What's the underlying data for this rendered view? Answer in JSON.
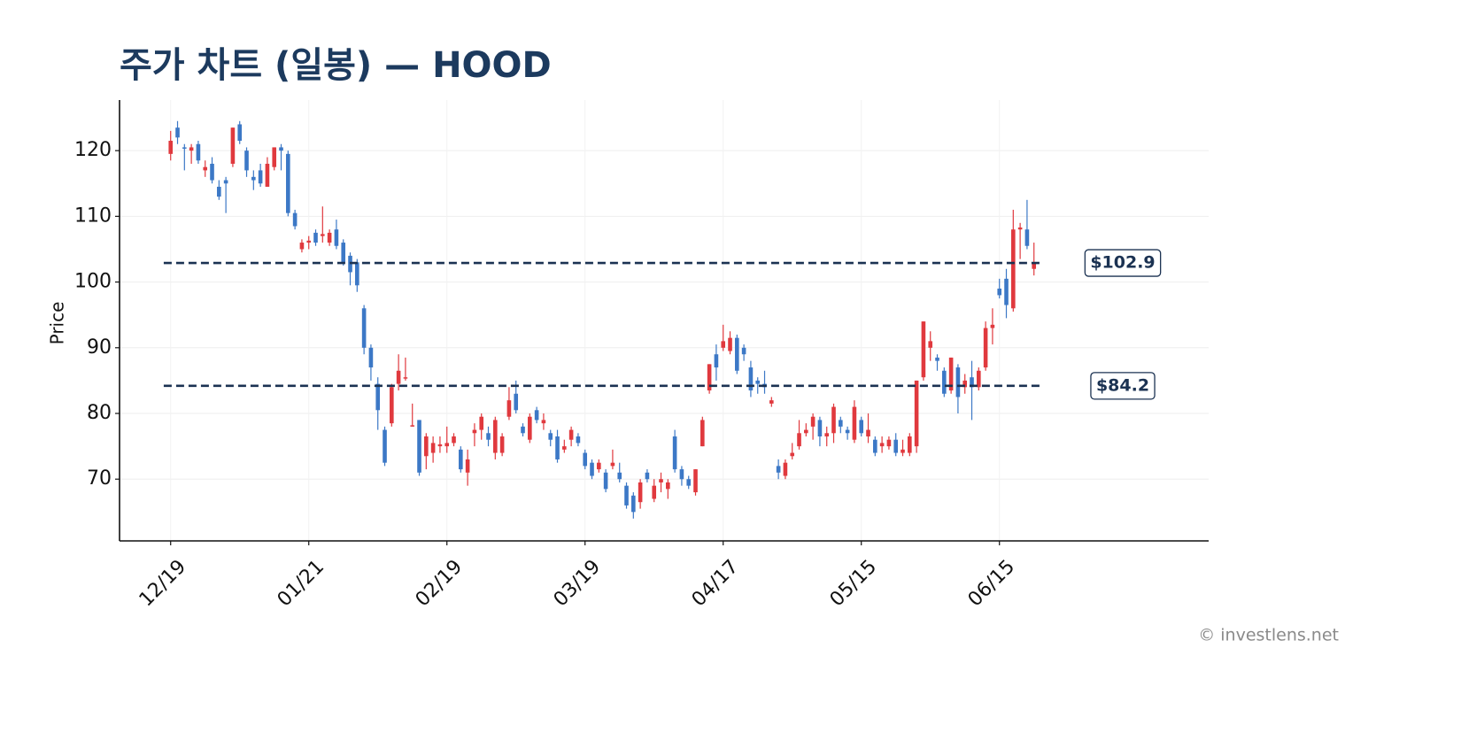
{
  "chart_data": {
    "type": "candlestick",
    "title": "주가 차트 (일봉) — HOOD",
    "y_label": "Price",
    "watermark": "© investlens.net",
    "up_color": "#e0393e",
    "down_color": "#3c78c6",
    "grid": true,
    "ylim": [
      60.6,
      127.7
    ],
    "yticks": [
      70,
      80,
      90,
      100,
      110,
      120
    ],
    "categories": [
      "12/19",
      null,
      null,
      null,
      null,
      null,
      null,
      null,
      null,
      null,
      null,
      null,
      null,
      null,
      null,
      null,
      null,
      null,
      null,
      null,
      "01/21",
      null,
      null,
      null,
      null,
      null,
      null,
      null,
      null,
      null,
      null,
      null,
      null,
      null,
      null,
      null,
      null,
      null,
      null,
      null,
      "02/19",
      null,
      null,
      null,
      null,
      null,
      null,
      null,
      null,
      null,
      null,
      null,
      null,
      null,
      null,
      null,
      null,
      null,
      null,
      null,
      "03/19",
      null,
      null,
      null,
      null,
      null,
      null,
      null,
      null,
      null,
      null,
      null,
      null,
      null,
      null,
      null,
      null,
      null,
      null,
      null,
      "04/17",
      null,
      null,
      null,
      null,
      null,
      null,
      null,
      null,
      null,
      null,
      null,
      null,
      null,
      null,
      null,
      null,
      null,
      null,
      null,
      "05/15",
      null,
      null,
      null,
      null,
      null,
      null,
      null,
      null,
      null,
      null,
      null,
      null,
      null,
      null,
      null,
      null,
      null,
      null,
      null,
      "06/15",
      null,
      null,
      null,
      null,
      null
    ],
    "open": [
      119.5,
      123.5,
      120.5,
      120,
      121,
      117,
      118,
      114.5,
      115.5,
      118,
      124,
      120,
      116,
      117,
      114.5,
      117.5,
      120.5,
      119.5,
      110.5,
      105,
      106,
      107.5,
      107,
      106,
      108,
      106,
      104,
      103,
      96,
      90,
      84.5,
      77.5,
      78.5,
      84.5,
      85.3,
      78,
      79,
      73.5,
      74,
      75,
      75,
      75.5,
      74.5,
      71,
      77,
      77.5,
      77,
      74,
      74,
      79.5,
      83,
      78,
      76,
      80.5,
      78.5,
      77,
      76.5,
      74.5,
      76,
      76.5,
      74,
      72.5,
      71.5,
      71,
      72,
      71,
      69,
      67.5,
      66.5,
      71,
      67,
      69.5,
      68.5,
      76.5,
      71.5,
      70,
      68,
      75,
      83.5,
      89,
      90,
      89.5,
      91.5,
      90,
      87,
      85,
      84.5,
      81.5,
      72,
      70.5,
      73.5,
      75,
      77,
      78,
      79,
      76.5,
      77,
      79,
      77.5,
      76,
      79,
      76.5,
      76,
      75,
      75,
      76,
      74,
      74,
      75,
      85.5,
      90,
      88.5,
      86.5,
      83.5,
      87,
      84,
      85.5,
      84,
      87,
      93,
      99,
      100.5,
      96,
      108,
      108,
      102
    ],
    "high": [
      123,
      124.5,
      121,
      121,
      121.5,
      118.5,
      119,
      115.5,
      116,
      123.5,
      124.5,
      120.5,
      117,
      118,
      119,
      120.5,
      121,
      120,
      111,
      106.5,
      107,
      108,
      111.5,
      108,
      109.5,
      106.5,
      104.5,
      103.5,
      96.5,
      90.5,
      85.5,
      78,
      84.5,
      89,
      88.5,
      81.5,
      79,
      77,
      76.5,
      76.5,
      78,
      77,
      75,
      74.5,
      78.5,
      80,
      78,
      79.5,
      77,
      84,
      85,
      78.5,
      80,
      81,
      80,
      77.5,
      77.5,
      76,
      78,
      77,
      74.5,
      73,
      73,
      71.5,
      74.5,
      72.5,
      69.5,
      68,
      70,
      71.5,
      70,
      71,
      70,
      77.5,
      72,
      70.5,
      71.5,
      79.5,
      87.5,
      90.5,
      93.5,
      92.5,
      92,
      90.5,
      88,
      85.5,
      86.5,
      82.5,
      73,
      73,
      75.5,
      79,
      78.5,
      80,
      79.5,
      78,
      81.5,
      79.5,
      78,
      82,
      79.5,
      80,
      76.5,
      76.5,
      76.5,
      77,
      76,
      77,
      85,
      94,
      92.5,
      89,
      87,
      88.5,
      87.5,
      86,
      88,
      87,
      94,
      96,
      100.5,
      102,
      111,
      109,
      112.5,
      106
    ],
    "low": [
      118.5,
      121,
      117,
      118,
      118,
      116,
      115,
      112.5,
      110.5,
      117.5,
      121,
      116,
      114,
      114.5,
      114.5,
      117,
      117,
      110,
      108,
      104.5,
      105,
      105.5,
      106,
      105.5,
      105,
      102.5,
      99.5,
      98.5,
      89,
      85,
      77.5,
      72,
      78,
      83.5,
      85,
      78,
      70.5,
      71.5,
      72.5,
      74,
      74,
      75,
      71,
      69,
      75,
      76,
      75,
      73,
      73.5,
      79,
      80,
      76.5,
      75.5,
      78.5,
      77.5,
      75,
      72.5,
      74,
      75,
      75,
      71.5,
      70,
      71,
      68,
      71.5,
      69.5,
      65.5,
      64,
      65.5,
      69.5,
      66.5,
      68,
      67,
      71,
      69,
      68.5,
      67.5,
      75,
      83,
      85,
      89.5,
      89,
      86,
      88,
      82.5,
      83,
      83,
      81,
      70,
      70,
      73,
      74.5,
      76.5,
      76,
      75,
      75,
      75.5,
      77,
      76,
      75.5,
      76.5,
      75.5,
      73.5,
      74,
      74.5,
      73.5,
      73.5,
      73.5,
      74,
      85,
      88,
      86.5,
      82.5,
      83,
      80,
      83,
      79,
      83.5,
      86.5,
      90.5,
      97.5,
      94.5,
      95.5,
      103.5,
      105,
      101
    ],
    "close": [
      121.5,
      122,
      120.3,
      120.5,
      118.5,
      117.5,
      115.5,
      113,
      115,
      123.5,
      121.5,
      117,
      115.5,
      115,
      118,
      120.5,
      120,
      110.5,
      108.5,
      106,
      106.3,
      106,
      107.3,
      107.5,
      105.5,
      103,
      101.5,
      99.5,
      90,
      87,
      80.5,
      72.5,
      84,
      86.5,
      85.5,
      78.2,
      71,
      76.5,
      75.5,
      75.3,
      75.5,
      76.5,
      71.5,
      73,
      77.5,
      79.5,
      76,
      79,
      76.5,
      82,
      80.5,
      77,
      79.5,
      79,
      79,
      76,
      73,
      75,
      77.5,
      75.5,
      72,
      70.5,
      72.5,
      68.5,
      72.5,
      70,
      66,
      65,
      69.5,
      70,
      69,
      70,
      69.5,
      71.5,
      70,
      69,
      71.5,
      79,
      87.5,
      87,
      91,
      91.5,
      86.5,
      89,
      83.5,
      84.5,
      84,
      82,
      71,
      72.5,
      74,
      77,
      77.5,
      79.5,
      76.5,
      77,
      81,
      78,
      77,
      81,
      77,
      77.5,
      74,
      75.5,
      76,
      74,
      74.5,
      76.5,
      85,
      94,
      91,
      88,
      83,
      88.5,
      82.5,
      85,
      84,
      86.5,
      93,
      93.5,
      98,
      96.5,
      108,
      108.3,
      105.5,
      102.8
    ],
    "levels": [
      {
        "value": 102.9,
        "label": "$102.9"
      },
      {
        "value": 84.2,
        "label": "$84.2"
      }
    ],
    "level_color": "#1b3252"
  }
}
